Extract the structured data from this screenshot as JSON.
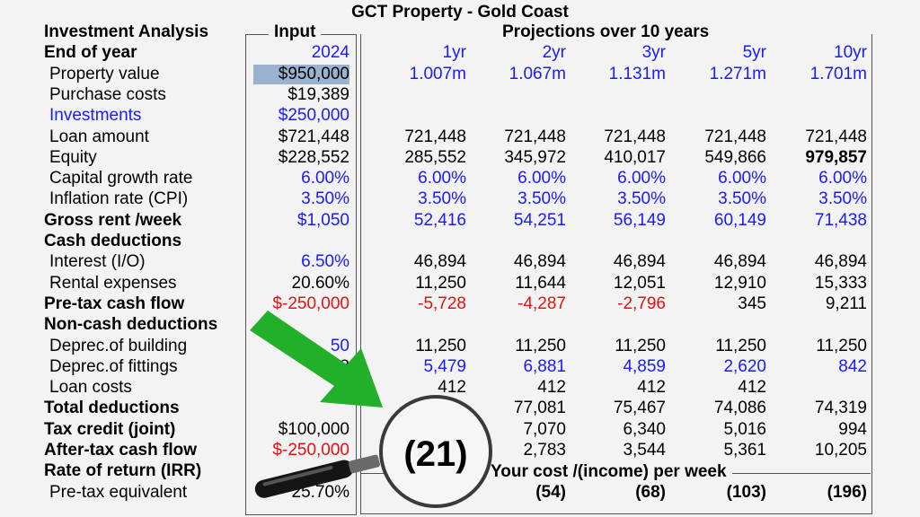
{
  "title": "GCT Property - Gold Coast",
  "input_header": "Input",
  "projection_header": "Projections over 10 years",
  "cost_label": "Your cost /(income) per week",
  "magnified_value": "(21)",
  "rows": [
    {
      "label": "Investment Analysis",
      "bold": true,
      "input": "",
      "vals": [
        "",
        "",
        "",
        "",
        ""
      ]
    },
    {
      "label": "End of year",
      "bold": true,
      "input": "2024",
      "input_color": "blue",
      "vals": [
        "1yr",
        "2yr",
        "3yr",
        "5yr",
        "10yr"
      ],
      "val_color": "blue"
    },
    {
      "label": "Property value",
      "input": "$950,000",
      "input_hl": true,
      "vals": [
        "1.007m",
        "1.067m",
        "1.131m",
        "1.271m",
        "1.701m"
      ],
      "val_color": "blue"
    },
    {
      "label": "Purchase costs",
      "input": "$19,389",
      "vals": [
        "",
        "",
        "",
        "",
        ""
      ]
    },
    {
      "label": "Investments",
      "label_color": "blue",
      "input": "$250,000",
      "input_color": "blue",
      "vals": [
        "",
        "",
        "",
        "",
        ""
      ]
    },
    {
      "label": "Loan amount",
      "input": "$721,448",
      "vals": [
        "721,448",
        "721,448",
        "721,448",
        "721,448",
        "721,448"
      ]
    },
    {
      "label": "Equity",
      "input": "$228,552",
      "vals": [
        "285,552",
        "345,972",
        "410,017",
        "549,866",
        "979,857"
      ],
      "last_bold": true
    },
    {
      "label": "Capital growth rate",
      "input": "6.00%",
      "input_color": "blue",
      "vals": [
        "6.00%",
        "6.00%",
        "6.00%",
        "6.00%",
        "6.00%"
      ],
      "val_color": "blue"
    },
    {
      "label": "Inflation rate (CPI)",
      "input": "3.50%",
      "input_color": "blue",
      "vals": [
        "3.50%",
        "3.50%",
        "3.50%",
        "3.50%",
        "3.50%"
      ],
      "val_color": "blue"
    },
    {
      "label": "Gross rent /week",
      "bold": true,
      "input": "$1,050",
      "input_color": "blue",
      "vals": [
        "52,416",
        "54,251",
        "56,149",
        "60,149",
        "71,438"
      ],
      "val_color": "blue"
    },
    {
      "label": "Cash deductions",
      "bold": true,
      "input": "",
      "vals": [
        "",
        "",
        "",
        "",
        ""
      ]
    },
    {
      "label": "Interest (I/O)",
      "input": "6.50%",
      "input_color": "blue",
      "vals": [
        "46,894",
        "46,894",
        "46,894",
        "46,894",
        "46,894"
      ]
    },
    {
      "label": "Rental expenses",
      "input": "20.60%",
      "vals": [
        "11,250",
        "11,644",
        "12,051",
        "12,910",
        "15,333"
      ]
    },
    {
      "label": "Pre-tax cash flow",
      "bold": true,
      "input": "$-250,000",
      "input_color": "red",
      "vals": [
        "-5,728",
        "-4,287",
        "-2,796",
        "345",
        "9,211"
      ],
      "val_colors": [
        "red",
        "red",
        "red",
        "",
        ""
      ]
    },
    {
      "label": "Non-cash deductions",
      "bold": true,
      "input": "",
      "vals": [
        "",
        "",
        "",
        "",
        ""
      ]
    },
    {
      "label": "Deprec.of building",
      "input": "50",
      "input_color": "blue",
      "vals": [
        "11,250",
        "11,250",
        "11,250",
        "11,250",
        "11,250"
      ]
    },
    {
      "label": "Deprec.of fittings",
      "input": "$3",
      "vals": [
        "5,479",
        "6,881",
        "4,859",
        "2,620",
        "842"
      ],
      "val_color": "blue"
    },
    {
      "label": "Loan costs",
      "input": "$",
      "vals": [
        "412",
        "412",
        "412",
        "412",
        ""
      ]
    },
    {
      "label": "Total deductions",
      "bold": true,
      "input": "",
      "vals": [
        "",
        "77,081",
        "75,467",
        "74,086",
        "74,319"
      ]
    },
    {
      "label": "Tax credit (joint)",
      "bold": true,
      "input": "$100,000",
      "vals": [
        "",
        "7,070",
        "6,340",
        "5,016",
        "994"
      ]
    },
    {
      "label": "After-tax cash flow",
      "bold": true,
      "input": "$-250,000",
      "input_color": "red",
      "vals": [
        "",
        "2,783",
        "3,544",
        "5,361",
        "10,205"
      ]
    },
    {
      "label": "Rate of return (IRR)",
      "bold": true,
      "input": "",
      "vals": [
        "",
        "",
        "",
        "",
        ""
      ]
    },
    {
      "label": "Pre-tax equivalent",
      "input": "25.70%",
      "vals": [
        "",
        "(54)",
        "(68)",
        "(103)",
        "(196)"
      ],
      "val_bold": true
    }
  ]
}
